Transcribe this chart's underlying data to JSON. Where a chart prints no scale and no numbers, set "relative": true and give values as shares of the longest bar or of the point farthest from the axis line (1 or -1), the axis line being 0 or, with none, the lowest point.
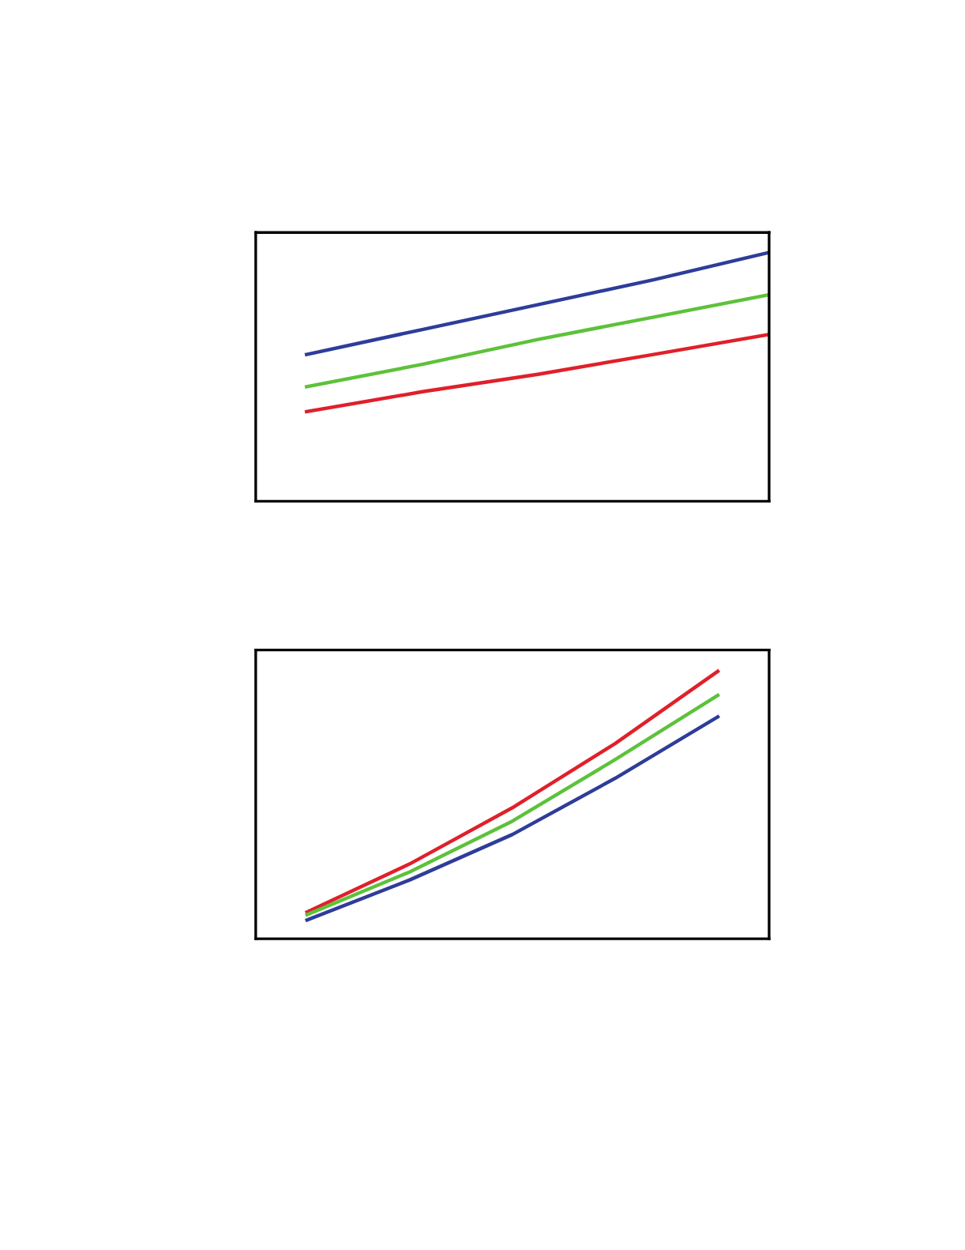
{
  "chart_data": [
    {
      "type": "line",
      "relative": true,
      "categories": [
        null,
        null,
        null,
        null,
        null
      ],
      "series": [
        {
          "color": "#2e3d9a",
          "values": [
            0.59,
            0.69,
            0.79,
            0.89,
            1.0
          ]
        },
        {
          "color": "#5cc23a",
          "values": [
            0.46,
            0.55,
            0.65,
            0.74,
            0.83
          ]
        },
        {
          "color": "#e0202a",
          "values": [
            0.36,
            0.44,
            0.51,
            0.59,
            0.67
          ]
        }
      ]
    },
    {
      "type": "line",
      "relative": true,
      "categories": [
        null,
        null,
        null,
        null,
        null
      ],
      "series": [
        {
          "color": "#e0202a",
          "values": [
            0.1,
            0.28,
            0.49,
            0.73,
            1.0
          ]
        },
        {
          "color": "#5cc23a",
          "values": [
            0.09,
            0.25,
            0.44,
            0.67,
            0.91
          ]
        },
        {
          "color": "#2e3d9a",
          "values": [
            0.07,
            0.22,
            0.39,
            0.6,
            0.83
          ]
        }
      ]
    }
  ]
}
